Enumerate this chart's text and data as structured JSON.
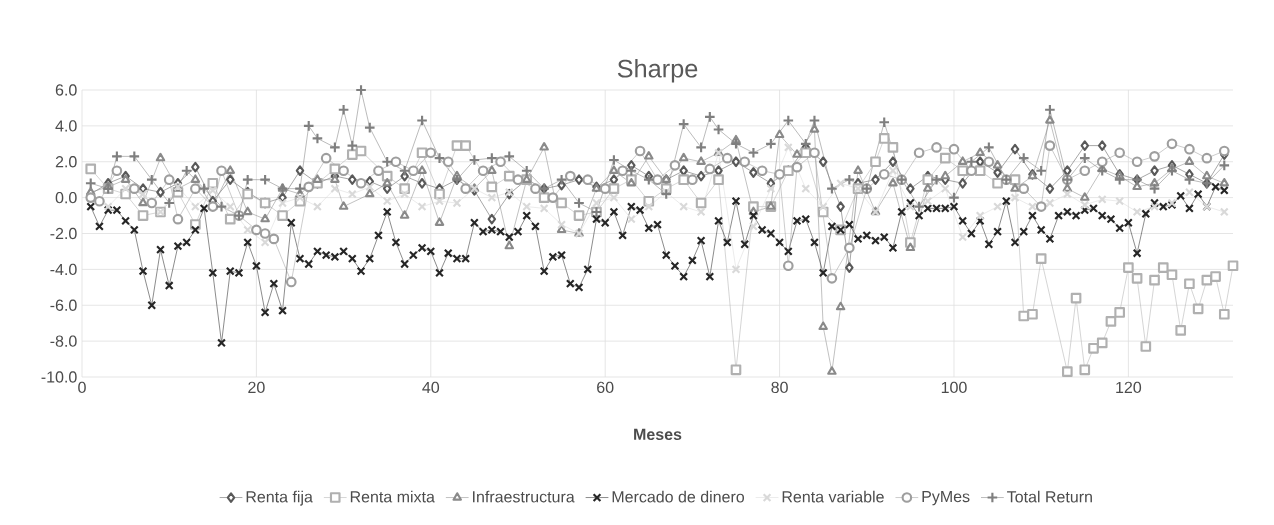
{
  "chart_data": {
    "type": "line",
    "title": "Sharpe",
    "xlabel": "Meses",
    "xlim": [
      0,
      132
    ],
    "xticks": [
      0,
      20,
      40,
      60,
      80,
      100,
      120
    ],
    "ylim": [
      -10,
      6
    ],
    "yticks": [
      {
        "value": -10,
        "label": "-10.0"
      },
      {
        "value": -8,
        "label": "-8.0"
      },
      {
        "value": -6,
        "label": "-6.0"
      },
      {
        "value": -4,
        "label": "-4.0"
      },
      {
        "value": -2,
        "label": "-2.0"
      },
      {
        "value": 0,
        "label": "0.0"
      },
      {
        "value": 2,
        "label": "2.0"
      },
      {
        "value": 4,
        "label": "4.0"
      },
      {
        "value": 6,
        "label": "6.0"
      }
    ],
    "grid": true,
    "legend": "bottom",
    "series": [
      {
        "name": "Renta fija",
        "color": "#595959",
        "marker": "diamond",
        "x": [
          1,
          3,
          5,
          7,
          9,
          11,
          13,
          15,
          17,
          19,
          21,
          23,
          25,
          27,
          29,
          31,
          33,
          35,
          37,
          39,
          41,
          43,
          45,
          47,
          49,
          51,
          53,
          55,
          57,
          59,
          61,
          63,
          65,
          67,
          69,
          71,
          73,
          75,
          77,
          79,
          81,
          83,
          85,
          87,
          88,
          89,
          91,
          93,
          95,
          97,
          99,
          101,
          103,
          105,
          107,
          109,
          111,
          113,
          115,
          117,
          119,
          121,
          123,
          125,
          127,
          129,
          131
        ],
        "values": [
          0.2,
          0.8,
          1.2,
          0.5,
          0.3,
          0.8,
          1.7,
          -0.2,
          1.0,
          0.3,
          -0.3,
          0.0,
          1.5,
          0.8,
          1.2,
          1.0,
          0.9,
          0.5,
          1.2,
          0.8,
          0.5,
          1.0,
          0.4,
          -1.2,
          0.2,
          1.0,
          0.5,
          0.7,
          1.0,
          0.6,
          1.0,
          1.8,
          1.2,
          1.0,
          1.5,
          1.2,
          1.5,
          2.0,
          1.4,
          0.8,
          1.5,
          2.8,
          2.0,
          -0.5,
          -3.9,
          0.8,
          1.0,
          2.0,
          0.5,
          1.2,
          1.0,
          0.8,
          2.0,
          1.4,
          2.7,
          1.3,
          0.5,
          1.5,
          2.9,
          2.9,
          1.3,
          1.0,
          1.5,
          1.8,
          1.3,
          0.8,
          2.4
        ]
      },
      {
        "name": "Renta mixta",
        "color": "#b0b0b0",
        "marker": "square",
        "x": [
          1,
          3,
          5,
          7,
          9,
          11,
          13,
          15,
          17,
          19,
          21,
          23,
          25,
          27,
          29,
          31,
          32,
          35,
          37,
          39,
          41,
          43,
          44,
          47,
          49,
          51,
          53,
          55,
          57,
          59,
          61,
          63,
          65,
          67,
          69,
          71,
          73,
          75,
          77,
          79,
          81,
          83,
          85,
          87,
          89,
          91,
          92,
          93,
          95,
          97,
          99,
          101,
          103,
          105,
          107,
          108,
          109,
          110,
          113,
          114,
          115,
          116,
          117,
          118,
          119,
          120,
          121,
          122,
          123,
          124,
          125,
          126,
          127,
          128,
          129,
          130,
          131,
          132
        ],
        "values": [
          1.6,
          0.5,
          0.2,
          -1.0,
          -0.8,
          0.3,
          -1.5,
          0.8,
          -1.2,
          0.2,
          -0.3,
          -1.0,
          -0.2,
          0.8,
          1.6,
          2.4,
          2.6,
          1.2,
          0.5,
          2.5,
          0.2,
          2.9,
          2.9,
          0.6,
          1.2,
          1.0,
          0.0,
          -0.3,
          -1.0,
          -0.8,
          0.5,
          1.0,
          -0.2,
          0.5,
          1.0,
          -0.3,
          1.0,
          -9.6,
          -0.5,
          -0.5,
          1.5,
          2.5,
          -0.8,
          -1.8,
          0.5,
          2.0,
          3.3,
          2.8,
          -2.5,
          1.0,
          2.2,
          1.5,
          1.5,
          0.8,
          1.0,
          -6.6,
          -6.5,
          -3.4,
          -9.7,
          -5.6,
          -9.6,
          -8.4,
          -8.1,
          -6.9,
          -6.4,
          -3.9,
          -4.5,
          -8.3,
          -4.6,
          -3.9,
          -4.3,
          -7.4,
          -4.8,
          -6.2,
          -4.6,
          -4.4,
          -6.5,
          -3.8
        ]
      },
      {
        "name": "Infraestructura",
        "color": "#8a8a8a",
        "marker": "triangle",
        "x": [
          1,
          3,
          5,
          7,
          9,
          11,
          13,
          15,
          17,
          19,
          21,
          23,
          25,
          27,
          29,
          30,
          33,
          35,
          37,
          39,
          41,
          43,
          45,
          47,
          49,
          51,
          53,
          55,
          57,
          59,
          61,
          63,
          65,
          67,
          69,
          71,
          73,
          75,
          77,
          79,
          80,
          82,
          84,
          85,
          86,
          87,
          89,
          91,
          93,
          95,
          97,
          99,
          101,
          103,
          105,
          107,
          109,
          111,
          113,
          115,
          117,
          119,
          121,
          123,
          125,
          127,
          129,
          131
        ],
        "values": [
          0.3,
          0.6,
          1.0,
          -0.3,
          2.2,
          0.5,
          1.0,
          -0.5,
          1.5,
          -0.8,
          -1.2,
          0.5,
          0.2,
          1.0,
          1.0,
          -0.5,
          0.2,
          0.8,
          -1.0,
          1.5,
          -1.4,
          1.2,
          0.5,
          1.5,
          -2.7,
          1.0,
          2.8,
          -1.8,
          -2.0,
          0.5,
          1.5,
          0.8,
          2.3,
          1.0,
          2.2,
          2.0,
          2.5,
          3.2,
          -0.8,
          -0.5,
          3.5,
          2.4,
          3.8,
          -7.2,
          -9.7,
          -6.1,
          1.5,
          -0.8,
          0.8,
          -2.8,
          0.5,
          1.2,
          2.0,
          2.5,
          1.8,
          0.5,
          1.2,
          4.3,
          0.5,
          0.0,
          1.6,
          1.2,
          0.6,
          0.8,
          1.6,
          2.0,
          1.2,
          0.8
        ]
      },
      {
        "name": "Mercado de dinero",
        "color": "#262626",
        "marker": "cross",
        "x": [
          1,
          2,
          3,
          4,
          5,
          6,
          7,
          8,
          9,
          10,
          11,
          12,
          13,
          14,
          15,
          16,
          17,
          18,
          19,
          20,
          21,
          22,
          23,
          24,
          25,
          26,
          27,
          28,
          29,
          30,
          31,
          32,
          33,
          34,
          35,
          36,
          37,
          38,
          39,
          40,
          41,
          42,
          43,
          44,
          45,
          46,
          47,
          48,
          49,
          50,
          51,
          52,
          53,
          54,
          55,
          56,
          57,
          58,
          59,
          60,
          61,
          62,
          63,
          64,
          65,
          66,
          67,
          68,
          69,
          70,
          71,
          72,
          73,
          74,
          75,
          76,
          77,
          78,
          79,
          80,
          81,
          82,
          83,
          84,
          85,
          86,
          87,
          88,
          89,
          90,
          91,
          92,
          93,
          94,
          95,
          96,
          97,
          98,
          99,
          100,
          101,
          102,
          103,
          104,
          105,
          106,
          107,
          108,
          109,
          110,
          111,
          112,
          113,
          114,
          115,
          116,
          117,
          118,
          119,
          120,
          121,
          122,
          123,
          124,
          125,
          126,
          127,
          128,
          129,
          130,
          131
        ],
        "values": [
          -0.5,
          -1.6,
          -0.7,
          -0.7,
          -1.3,
          -1.8,
          -4.1,
          -6.0,
          -2.9,
          -4.9,
          -2.7,
          -2.5,
          -1.8,
          -0.6,
          -4.2,
          -8.1,
          -4.1,
          -4.2,
          -2.5,
          -3.8,
          -6.4,
          -4.8,
          -6.3,
          -1.4,
          -3.4,
          -3.7,
          -3.0,
          -3.2,
          -3.3,
          -3.0,
          -3.4,
          -4.1,
          -3.4,
          -2.1,
          -0.8,
          -2.5,
          -3.7,
          -3.2,
          -2.8,
          -3.0,
          -4.2,
          -3.1,
          -3.4,
          -3.4,
          -1.4,
          -1.9,
          -1.8,
          -1.9,
          -2.2,
          -1.9,
          -1.0,
          -1.6,
          -4.1,
          -3.3,
          -3.2,
          -4.8,
          -5.0,
          -4.0,
          -1.2,
          -1.4,
          -0.8,
          -2.1,
          -0.5,
          -0.7,
          -1.7,
          -1.5,
          -3.2,
          -3.8,
          -4.4,
          -3.5,
          -2.4,
          -4.4,
          -1.3,
          -2.5,
          -0.2,
          -2.6,
          -1.0,
          -1.8,
          -2.0,
          -2.5,
          -3.0,
          -1.3,
          -1.2,
          -2.5,
          -4.2,
          -1.6,
          -1.8,
          -1.5,
          -2.3,
          -2.1,
          -2.4,
          -2.2,
          -2.8,
          -0.8,
          -0.3,
          -1.0,
          -0.6,
          -0.6,
          -0.6,
          -0.5,
          -1.3,
          -2.0,
          -1.3,
          -2.6,
          -1.9,
          -0.2,
          -2.5,
          -1.9,
          -1.0,
          -1.8,
          -2.3,
          -1.0,
          -0.8,
          -1.0,
          -0.7,
          -0.6,
          -1.0,
          -1.2,
          -1.7,
          -1.4,
          -3.1,
          -0.9,
          -0.3,
          -0.5,
          -0.4,
          0.1,
          -0.6,
          0.2,
          -0.5,
          0.6,
          0.4
        ]
      },
      {
        "name": "Renta variable",
        "color": "#d9d9d9",
        "marker": "cross",
        "x": [
          1,
          3,
          5,
          7,
          9,
          11,
          13,
          15,
          17,
          19,
          21,
          23,
          25,
          27,
          29,
          31,
          33,
          35,
          37,
          39,
          41,
          43,
          45,
          47,
          49,
          51,
          53,
          55,
          57,
          59,
          61,
          63,
          65,
          67,
          69,
          71,
          73,
          75,
          77,
          79,
          81,
          83,
          85,
          87,
          89,
          91,
          93,
          95,
          97,
          99,
          101,
          103,
          105,
          107,
          109,
          111,
          113,
          115,
          117,
          119,
          121,
          123,
          125,
          127,
          129,
          131
        ],
        "values": [
          0.0,
          -0.5,
          0.5,
          0.2,
          -0.8,
          0.6,
          -0.5,
          0.4,
          -0.5,
          -1.8,
          -2.5,
          -0.3,
          0.0,
          -0.5,
          0.5,
          0.2,
          0.6,
          -0.2,
          0.2,
          -0.5,
          -0.2,
          -0.3,
          0.5,
          0.0,
          0.3,
          -0.5,
          -0.6,
          -1.5,
          -2.0,
          -0.3,
          0.0,
          -1.2,
          -0.5,
          0.3,
          -0.5,
          -0.8,
          2.5,
          -4.0,
          -1.6,
          0.5,
          2.8,
          0.5,
          -0.5,
          0.8,
          0.5,
          -0.8,
          1.5,
          -0.5,
          -0.2,
          0.5,
          -2.2,
          -1.0,
          -0.5,
          0.0,
          -0.5,
          -0.3,
          0.2,
          -0.4,
          -0.1,
          -0.2,
          -0.8,
          -0.5,
          -0.3,
          0.3,
          -0.5,
          -0.8
        ]
      },
      {
        "name": "PyMes",
        "color": "#9e9e9e",
        "marker": "circle",
        "x": [
          1,
          2,
          4,
          6,
          8,
          10,
          11,
          13,
          15,
          16,
          18,
          20,
          21,
          22,
          24,
          26,
          28,
          30,
          32,
          34,
          36,
          38,
          40,
          42,
          44,
          46,
          48,
          50,
          52,
          54,
          56,
          58,
          60,
          62,
          64,
          66,
          68,
          70,
          72,
          74,
          76,
          78,
          80,
          81,
          82,
          84,
          86,
          88,
          90,
          92,
          94,
          96,
          98,
          100,
          102,
          104,
          106,
          108,
          110,
          111,
          113,
          115,
          117,
          119,
          121,
          123,
          125,
          127,
          129,
          131
        ],
        "values": [
          0.0,
          -0.2,
          1.5,
          0.5,
          -0.3,
          1.0,
          -1.2,
          0.5,
          -0.5,
          1.5,
          -1.0,
          -1.8,
          -2.0,
          -2.3,
          -4.7,
          0.6,
          2.2,
          1.5,
          0.8,
          1.5,
          2.0,
          1.5,
          2.5,
          2.0,
          0.5,
          1.5,
          2.0,
          1.0,
          0.5,
          0.0,
          1.2,
          1.0,
          0.5,
          1.5,
          2.6,
          1.0,
          1.8,
          1.0,
          1.6,
          2.2,
          2.0,
          1.5,
          1.3,
          -3.8,
          1.7,
          2.5,
          -4.5,
          -2.8,
          0.5,
          1.3,
          1.0,
          2.5,
          2.8,
          2.7,
          1.5,
          2.0,
          1.0,
          0.5,
          -0.5,
          2.9,
          1.0,
          1.5,
          2.0,
          2.5,
          2.0,
          2.3,
          3.0,
          2.7,
          2.2,
          2.6
        ]
      },
      {
        "name": "Total Return",
        "color": "#7f7f7f",
        "marker": "plus",
        "x": [
          1,
          3,
          4,
          6,
          8,
          10,
          12,
          14,
          16,
          18,
          19,
          21,
          23,
          25,
          26,
          27,
          29,
          30,
          31,
          32,
          33,
          35,
          37,
          39,
          41,
          43,
          45,
          47,
          49,
          51,
          53,
          55,
          57,
          59,
          61,
          63,
          65,
          67,
          69,
          71,
          72,
          73,
          75,
          77,
          79,
          81,
          83,
          84,
          86,
          88,
          90,
          92,
          94,
          96,
          98,
          100,
          102,
          104,
          106,
          108,
          110,
          111,
          113,
          115,
          117,
          119,
          121,
          123,
          125,
          127,
          129,
          131
        ],
        "values": [
          0.8,
          0.5,
          2.3,
          2.3,
          1.0,
          -0.3,
          1.5,
          0.5,
          -0.5,
          -1.0,
          1.0,
          1.0,
          0.5,
          0.5,
          4.0,
          3.3,
          2.8,
          4.9,
          2.9,
          6.0,
          3.9,
          2.0,
          1.5,
          4.3,
          2.2,
          1.0,
          2.1,
          2.2,
          2.3,
          1.5,
          0.5,
          1.0,
          -0.3,
          -0.8,
          2.1,
          1.5,
          1.0,
          0.2,
          4.1,
          2.8,
          4.5,
          3.8,
          3.0,
          2.5,
          3.0,
          4.3,
          3.0,
          4.3,
          0.5,
          1.0,
          0.5,
          4.2,
          1.0,
          -0.5,
          1.0,
          0.0,
          2.0,
          2.8,
          1.0,
          2.2,
          1.5,
          4.9,
          1.0,
          2.2,
          1.5,
          1.0,
          1.0,
          0.5,
          1.5,
          1.0,
          0.8,
          1.8
        ]
      }
    ]
  }
}
